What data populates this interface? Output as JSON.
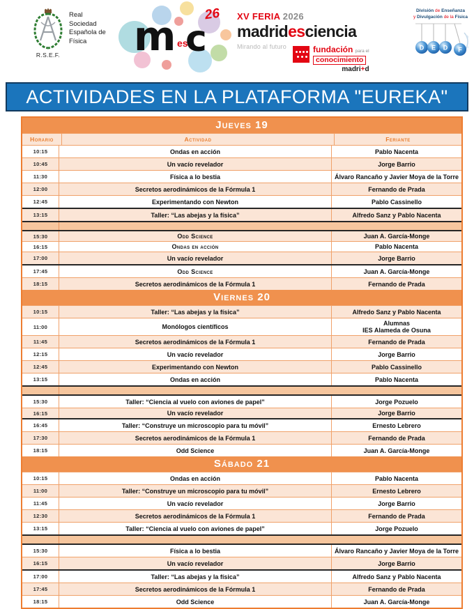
{
  "header": {
    "rsef": {
      "org_lines": [
        "Real",
        "Sociedad",
        "Española de",
        "Física"
      ],
      "abbr": "R.S.E.F."
    },
    "feria": {
      "logo_m": "m",
      "logo_es": "es",
      "logo_c": "c",
      "logo_script": "26",
      "feria_line": [
        {
          "t": "XV FERIA ",
          "c": "red"
        },
        {
          "t": "2026",
          "c": "gray"
        }
      ],
      "brand": [
        {
          "t": "madrid",
          "c": "dark"
        },
        {
          "t": "es",
          "c": "red"
        },
        {
          "t": "ciencia",
          "c": "dark"
        }
      ],
      "tagline": "Mirando al futuro"
    },
    "fundacion": {
      "line1": "fundación",
      "line1_small": "para el",
      "line2": "conocimiento",
      "line3": [
        {
          "t": "madri",
          "c": "dark"
        },
        {
          "t": "+",
          "c": "red"
        },
        {
          "t": "d",
          "c": "dark"
        }
      ]
    },
    "dedf": {
      "line1": [
        {
          "t": "División ",
          "c": "navy"
        },
        {
          "t": "de ",
          "c": "red"
        },
        {
          "t": "Enseñanza",
          "c": "navy"
        }
      ],
      "line2": [
        {
          "t": "y ",
          "c": "red"
        },
        {
          "t": "Divulgación ",
          "c": "navy"
        },
        {
          "t": "de la ",
          "c": "red"
        },
        {
          "t": "Física",
          "c": "navy"
        }
      ],
      "balls": [
        "D",
        "E",
        "D",
        "F"
      ]
    }
  },
  "banner": {
    "title": "ACTIVIDADES EN LA PLATAFORMA \"EUREKA\""
  },
  "table": {
    "columns": {
      "horario": "Horario",
      "actividad": "Actividad",
      "feriante": "Feriante"
    },
    "sections": [
      {
        "day": "Jueves 19",
        "show_columns": true,
        "rows": [
          {
            "time": "10:15",
            "activity": "Ondas en acción",
            "feriante": "Pablo Nacenta",
            "bg": "white"
          },
          {
            "time": "10:45",
            "activity": "Un vacío revelador",
            "feriante": "Jorge Barrio",
            "bg": "peach"
          },
          {
            "time": "11:30",
            "activity": "Física a lo bestia",
            "feriante": "Álvaro Rancaño y Javier Moya de la Torre",
            "bg": "white"
          },
          {
            "time": "12:00",
            "activity": "Secretos aerodinámicos de la Fórmula 1",
            "feriante": "Fernando de Prada",
            "bg": "peach"
          },
          {
            "time": "12:45",
            "activity": "Experimentando con Newton",
            "feriante": "Pablo Cassinello",
            "bg": "white"
          },
          {
            "time": "13:15",
            "activity": "Taller: “Las abejas y la física”",
            "feriante": "Alfredo Sanz y Pablo Nacenta",
            "bg": "peach",
            "dark_top": true
          },
          {
            "gap": true
          },
          {
            "time": "15:30",
            "activity": "Odd Science",
            "feriante": "Juan A. García-Monge",
            "bg": "peach",
            "smallcaps": true,
            "small": true
          },
          {
            "time": "16:15",
            "activity": "Ondas en acción",
            "feriante": "Pablo Nacenta",
            "bg": "white",
            "smallcaps": true,
            "small": true
          },
          {
            "time": "17:00",
            "activity": "Un vacío revelador",
            "feriante": "Jorge Barrio",
            "bg": "peach",
            "dark_bottom": true
          },
          {
            "time": "17:45",
            "activity": "Odd Science",
            "feriante": "Juan A. García-Monge",
            "bg": "white",
            "smallcaps": true
          },
          {
            "time": "18:15",
            "activity": "Secretos aerodinámicos de la Fórmula 1",
            "feriante": "Fernando de Prada",
            "bg": "peach"
          }
        ]
      },
      {
        "day": "Viernes 20",
        "show_columns": false,
        "rows": [
          {
            "time": "10:15",
            "activity": "Taller: “Las abejas y la física”",
            "feriante": "Alfredo Sanz y Pablo Nacenta",
            "bg": "peach"
          },
          {
            "time": "11:00",
            "activity": "Monólogos científicos",
            "feriante": "Alumnas\nIES Alameda de Osuna",
            "bg": "white"
          },
          {
            "time": "11:45",
            "activity": "Secretos aerodinámicos de la Fórmula 1",
            "feriante": "Fernando de Prada",
            "bg": "peach"
          },
          {
            "time": "12:15",
            "activity": "Un vacío revelador",
            "feriante": "Jorge Barrio",
            "bg": "white"
          },
          {
            "time": "12:45",
            "activity": "Experimentando con Newton",
            "feriante": "Pablo Cassinello",
            "bg": "peach"
          },
          {
            "time": "13:15",
            "activity": "Ondas en acción",
            "feriante": "Pablo Nacenta",
            "bg": "white"
          },
          {
            "gap": true
          },
          {
            "time": "15:30",
            "activity": "Taller: “Ciencia al vuelo con aviones de papel”",
            "feriante": "Jorge Pozuelo",
            "bg": "white"
          },
          {
            "time": "16:15",
            "activity": "Un vacío revelador",
            "feriante": "Jorge Barrio",
            "bg": "peach",
            "small": true,
            "dark_bottom": true
          },
          {
            "time": "16:45",
            "activity": "Taller: “Construye un microscopio para tu móvil”",
            "feriante": "Ernesto Lebrero",
            "bg": "white"
          },
          {
            "time": "17:30",
            "activity": "Secretos aerodinámicos de la Fórmula 1",
            "feriante": "Fernando de Prada",
            "bg": "peach"
          },
          {
            "time": "18:15",
            "activity": "Odd Science",
            "feriante": "Juan A. García-Monge",
            "bg": "white"
          }
        ]
      },
      {
        "day": "Sábado 21",
        "show_columns": false,
        "rows": [
          {
            "time": "10:15",
            "activity": "Ondas en acción",
            "feriante": "Pablo Nacenta",
            "bg": "white"
          },
          {
            "time": "11:00",
            "activity": "Taller: “Construye un microscopio para tu móvil”",
            "feriante": "Ernesto Lebrero",
            "bg": "peach"
          },
          {
            "time": "11:45",
            "activity": "Un vacío revelador",
            "feriante": "Jorge Barrio",
            "bg": "white"
          },
          {
            "time": "12:30",
            "activity": "Secretos aerodinámicos de la Fórmula 1",
            "feriante": "Fernando de Prada",
            "bg": "peach"
          },
          {
            "time": "13:15",
            "activity": "Taller: “Ciencia al vuelo con aviones de papel”",
            "feriante": "Jorge Pozuelo",
            "bg": "white"
          },
          {
            "gap": true
          },
          {
            "time": "15:30",
            "activity": "Física a lo bestia",
            "feriante": "Álvaro Rancaño y Javier Moya de la Torre",
            "bg": "white"
          },
          {
            "time": "16:15",
            "activity": "Un vacío revelador",
            "feriante": "Jorge Barrio",
            "bg": "peach",
            "dark_bottom": true
          },
          {
            "time": "17:00",
            "activity": "Taller: “Las abejas y la física”",
            "feriante": "Alfredo Sanz y Pablo Nacenta",
            "bg": "white"
          },
          {
            "time": "17:45",
            "activity": "Secretos aerodinámicos de la Fórmula 1",
            "feriante": "Fernando de Prada",
            "bg": "peach"
          },
          {
            "time": "18:15",
            "activity": "Odd Science",
            "feriante": "Juan A. García-Monge",
            "bg": "white"
          }
        ]
      }
    ]
  },
  "colors": {
    "banner_blue": "#1B75BC",
    "banner_border": "#123A5E",
    "day_band_orange": "#F0914E",
    "peach_row": "#FBE5D6",
    "break_row": "#F6C69E",
    "grid_orange": "#F0A169",
    "outer_border_orange": "#ED7D31",
    "column_header_text": "#E87D2E",
    "dark_break_border": "#262626",
    "brand_red": "#E30613",
    "dedf_navy": "#1F4E79"
  }
}
